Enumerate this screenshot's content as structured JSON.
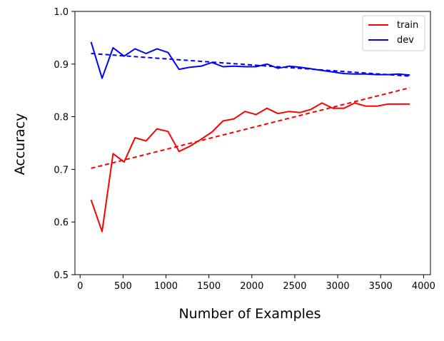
{
  "chart_data": {
    "type": "line",
    "title": "",
    "xlabel": "Number of Examples",
    "ylabel": "Accuracy",
    "xlim": [
      -60,
      4080
    ],
    "ylim": [
      0.5,
      1.0
    ],
    "xticks": [
      0,
      500,
      1000,
      1500,
      2000,
      2500,
      3000,
      3500,
      4000
    ],
    "xtick_labels": [
      "0",
      "500",
      "1000",
      "1500",
      "2000",
      "2500",
      "3000",
      "3500",
      "4000"
    ],
    "yticks": [
      0.5,
      0.6,
      0.7,
      0.8,
      0.9,
      1.0
    ],
    "ytick_labels": [
      "0.5",
      "0.6",
      "0.7",
      "0.8",
      "0.9",
      "1.0"
    ],
    "grid": false,
    "legend": {
      "placement": "top-right",
      "entries": [
        "train",
        "dev"
      ]
    },
    "series": [
      {
        "name": "train",
        "color": "#ff0000",
        "style": "solid",
        "x": [
          128,
          256,
          384,
          512,
          640,
          768,
          896,
          1024,
          1152,
          1280,
          1408,
          1536,
          1664,
          1792,
          1920,
          2048,
          2176,
          2304,
          2432,
          2560,
          2688,
          2816,
          2944,
          3072,
          3200,
          3328,
          3456,
          3584,
          3712,
          3840
        ],
        "y": [
          0.642,
          0.582,
          0.73,
          0.714,
          0.76,
          0.754,
          0.777,
          0.772,
          0.734,
          0.744,
          0.757,
          0.771,
          0.792,
          0.796,
          0.81,
          0.804,
          0.816,
          0.806,
          0.81,
          0.808,
          0.814,
          0.826,
          0.816,
          0.816,
          0.826,
          0.82,
          0.82,
          0.824,
          0.824,
          0.824
        ]
      },
      {
        "name": "dev",
        "color": "#0000ff",
        "style": "solid",
        "x": [
          128,
          256,
          384,
          512,
          640,
          768,
          896,
          1024,
          1152,
          1280,
          1408,
          1536,
          1664,
          1792,
          1920,
          2048,
          2176,
          2304,
          2432,
          2560,
          2688,
          2816,
          2944,
          3072,
          3200,
          3328,
          3456,
          3584,
          3712,
          3840
        ],
        "y": [
          0.942,
          0.873,
          0.931,
          0.915,
          0.929,
          0.92,
          0.929,
          0.922,
          0.89,
          0.894,
          0.896,
          0.903,
          0.895,
          0.896,
          0.895,
          0.895,
          0.9,
          0.892,
          0.896,
          0.894,
          0.891,
          0.888,
          0.885,
          0.882,
          0.881,
          0.881,
          0.88,
          0.88,
          0.881,
          0.879
        ]
      },
      {
        "color": "#ff0000",
        "style": "dashed",
        "x": [
          128,
          3840
        ],
        "y": [
          0.702,
          0.855
        ]
      },
      {
        "color": "#0000ff",
        "style": "dashed",
        "x": [
          128,
          3840
        ],
        "y": [
          0.92,
          0.877
        ]
      }
    ]
  }
}
